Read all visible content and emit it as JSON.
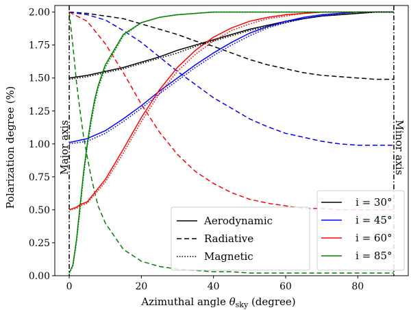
{
  "chart_data": {
    "type": "line",
    "xlabel_main": "Azimuthal angle ",
    "xlabel_theta": "θ",
    "xlabel_sub": "sky",
    "xlabel_unit": " (degree)",
    "ylabel": "Polarization degree (%)",
    "xlim": [
      -4,
      94
    ],
    "ylim": [
      0,
      2.05
    ],
    "xticks": [
      0,
      20,
      40,
      60,
      80
    ],
    "yticks": [
      0.0,
      0.25,
      0.5,
      0.75,
      1.0,
      1.25,
      1.5,
      1.75,
      2.0
    ],
    "ytick_labels": [
      "0.00",
      "0.25",
      "0.50",
      "0.75",
      "1.00",
      "1.25",
      "1.50",
      "1.75",
      "2.00"
    ],
    "vertical_lines": [
      {
        "x": 0,
        "label": "Major axis"
      },
      {
        "x": 90,
        "label": "Minor axis"
      }
    ],
    "style_legend": [
      {
        "label": "Aerodynamic",
        "dash": "solid"
      },
      {
        "label": "Radiative",
        "dash": "dashed"
      },
      {
        "label": "Magnetic",
        "dash": "dotted"
      }
    ],
    "inclination_legend": [
      {
        "label": "i = 30°",
        "color": "#000000"
      },
      {
        "label": "i = 45°",
        "color": "#0000ff"
      },
      {
        "label": "i = 60°",
        "color": "#ff0000"
      },
      {
        "label": "i = 85°",
        "color": "#008000"
      }
    ],
    "x": [
      0,
      5,
      10,
      15,
      20,
      25,
      30,
      35,
      40,
      45,
      50,
      55,
      60,
      65,
      70,
      75,
      80,
      85,
      90
    ],
    "series": [
      {
        "name": "Aerodynamic i=30°",
        "color": "#000000",
        "dash": "solid",
        "values": [
          1.5,
          1.52,
          1.55,
          1.58,
          1.62,
          1.66,
          1.71,
          1.75,
          1.79,
          1.83,
          1.87,
          1.9,
          1.93,
          1.95,
          1.97,
          1.98,
          1.99,
          2.0,
          2.0
        ]
      },
      {
        "name": "Magnetic i=30°",
        "color": "#000000",
        "dash": "dotted",
        "values": [
          1.49,
          1.51,
          1.54,
          1.57,
          1.61,
          1.65,
          1.69,
          1.74,
          1.78,
          1.82,
          1.86,
          1.89,
          1.92,
          1.95,
          1.97,
          1.98,
          1.99,
          2.0,
          2.0
        ]
      },
      {
        "name": "Radiative i=30°",
        "color": "#000000",
        "dash": "dashed",
        "values": [
          2.0,
          1.99,
          1.97,
          1.95,
          1.91,
          1.87,
          1.83,
          1.78,
          1.74,
          1.69,
          1.64,
          1.6,
          1.57,
          1.54,
          1.52,
          1.51,
          1.5,
          1.49,
          1.49
        ]
      },
      {
        "name": "Aerodynamic i=45°",
        "color": "#0000ff",
        "dash": "solid",
        "values": [
          1.01,
          1.04,
          1.1,
          1.19,
          1.29,
          1.4,
          1.5,
          1.6,
          1.69,
          1.77,
          1.84,
          1.89,
          1.93,
          1.96,
          1.98,
          1.99,
          2.0,
          2.0,
          2.0
        ]
      },
      {
        "name": "Magnetic i=45°",
        "color": "#0000ff",
        "dash": "dotted",
        "values": [
          1.0,
          1.02,
          1.08,
          1.17,
          1.27,
          1.38,
          1.48,
          1.58,
          1.67,
          1.75,
          1.82,
          1.88,
          1.92,
          1.95,
          1.97,
          1.99,
          2.0,
          2.0,
          2.0
        ]
      },
      {
        "name": "Radiative i=45°",
        "color": "#0000ff",
        "dash": "dashed",
        "values": [
          2.0,
          1.98,
          1.94,
          1.86,
          1.77,
          1.66,
          1.55,
          1.45,
          1.35,
          1.27,
          1.19,
          1.13,
          1.08,
          1.05,
          1.02,
          1.0,
          0.99,
          0.99,
          0.99
        ]
      },
      {
        "name": "Aerodynamic i=60°",
        "color": "#ff0000",
        "dash": "solid",
        "values": [
          0.5,
          0.56,
          0.73,
          0.96,
          1.2,
          1.41,
          1.58,
          1.71,
          1.81,
          1.88,
          1.93,
          1.96,
          1.98,
          1.99,
          2.0,
          2.0,
          2.0,
          2.0,
          2.0
        ]
      },
      {
        "name": "Magnetic i=60°",
        "color": "#ff0000",
        "dash": "dotted",
        "values": [
          0.5,
          0.55,
          0.71,
          0.93,
          1.17,
          1.38,
          1.55,
          1.68,
          1.78,
          1.86,
          1.91,
          1.95,
          1.97,
          1.99,
          2.0,
          2.0,
          2.0,
          2.0,
          2.0
        ]
      },
      {
        "name": "Radiative i=60°",
        "color": "#ff0000",
        "dash": "dashed",
        "values": [
          2.0,
          1.93,
          1.76,
          1.54,
          1.3,
          1.09,
          0.92,
          0.79,
          0.7,
          0.63,
          0.58,
          0.55,
          0.53,
          0.51,
          0.51,
          0.5,
          0.5,
          0.5,
          0.5
        ]
      },
      {
        "name": "Aerodynamic i=85°",
        "color": "#008000",
        "dash": "solid",
        "values": [
          0.02,
          1.0,
          1.6,
          1.83,
          1.92,
          1.96,
          1.98,
          1.99,
          2.0,
          2.0,
          2.0,
          2.0,
          2.0,
          2.0,
          2.0,
          2.0,
          2.0,
          2.0,
          2.0
        ]
      },
      {
        "name": "Magnetic i=85°",
        "color": "#008000",
        "dash": "dotted",
        "values": [
          0.02,
          0.98,
          1.58,
          1.82,
          1.92,
          1.96,
          1.98,
          1.99,
          2.0,
          2.0,
          2.0,
          2.0,
          2.0,
          2.0,
          2.0,
          2.0,
          2.0,
          2.0,
          2.0
        ]
      },
      {
        "name": "Radiative i=85°",
        "color": "#008000",
        "dash": "dashed",
        "values": [
          2.0,
          0.9,
          0.4,
          0.2,
          0.11,
          0.07,
          0.05,
          0.04,
          0.03,
          0.03,
          0.02,
          0.02,
          0.02,
          0.02,
          0.02,
          0.02,
          0.02,
          0.02,
          0.02
        ]
      }
    ],
    "extra_points": {
      "Aerodynamic i=85°": [
        [
          1,
          0.08
        ],
        [
          2,
          0.27
        ],
        [
          3,
          0.53
        ],
        [
          4,
          0.79
        ],
        [
          6,
          1.18
        ],
        [
          7,
          1.33
        ],
        [
          8,
          1.44
        ]
      ],
      "Magnetic i=85°": [
        [
          1,
          0.07
        ],
        [
          2,
          0.25
        ],
        [
          3,
          0.5
        ],
        [
          4,
          0.76
        ],
        [
          6,
          1.15
        ],
        [
          7,
          1.3
        ],
        [
          8,
          1.42
        ]
      ],
      "Radiative i=85°": [
        [
          1,
          1.75
        ],
        [
          2,
          1.47
        ],
        [
          3,
          1.25
        ],
        [
          4,
          1.05
        ],
        [
          6,
          0.76
        ],
        [
          7,
          0.64
        ],
        [
          8,
          0.53
        ]
      ],
      "Aerodynamic i=60°": [
        [
          2,
          0.52
        ],
        [
          3,
          0.54
        ]
      ],
      "Magnetic i=60°": [
        [
          2,
          0.51
        ],
        [
          3,
          0.53
        ]
      ]
    }
  }
}
